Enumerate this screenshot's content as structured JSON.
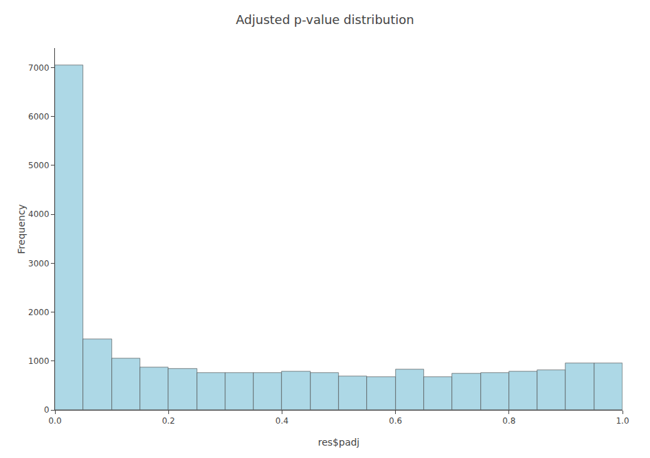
{
  "chart_data": {
    "type": "histogram",
    "title": "Adjusted p-value distribution",
    "xlabel": "res$padj",
    "ylabel": "Frequency",
    "bins": [
      0.0,
      0.05,
      0.1,
      0.15,
      0.2,
      0.25,
      0.3,
      0.35,
      0.4,
      0.45,
      0.5,
      0.55,
      0.6,
      0.65,
      0.7,
      0.75,
      0.8,
      0.85,
      0.9,
      0.95,
      1.0
    ],
    "values": [
      7050,
      1450,
      1060,
      870,
      840,
      760,
      760,
      760,
      780,
      760,
      690,
      670,
      830,
      670,
      740,
      760,
      790,
      820,
      960,
      960
    ],
    "color": "#ADD8E6",
    "xlim": [
      0.0,
      1.0
    ],
    "ylim": [
      0,
      7400
    ],
    "xticks": [
      {
        "value": 0.0,
        "label": "0.0"
      },
      0.2,
      0.4,
      0.6,
      0.8,
      {
        "value": 1.0,
        "label": "1.0"
      }
    ],
    "yticks": [
      0,
      1000,
      2000,
      3000,
      4000,
      5000,
      6000,
      7000
    ],
    "grid": false
  }
}
